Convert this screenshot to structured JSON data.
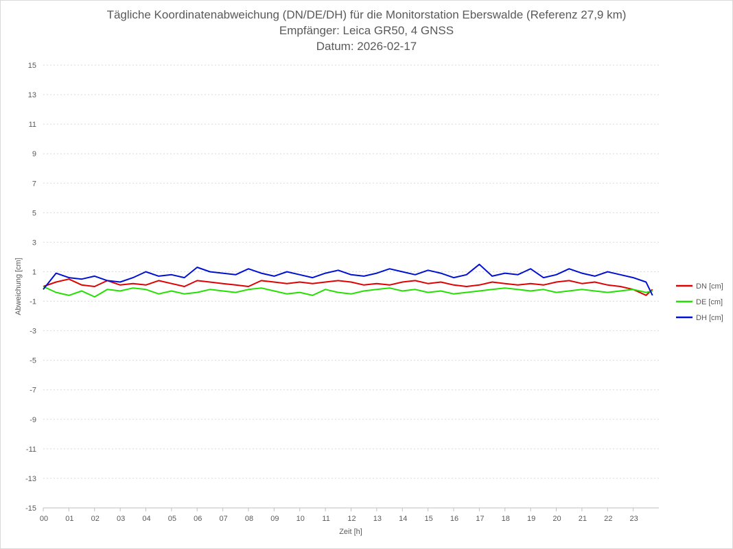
{
  "chart_data": {
    "type": "line",
    "title": "Tägliche Koordinatenabweichung (DN/DE/DH) für die Monitorstation Eberswalde (Referenz 27,9 km)",
    "subtitle": "Empfänger: Leica GR50, 4 GNSS",
    "date_line": "Datum: 2026-02-17",
    "xlabel": "Zeit [h]",
    "ylabel": "Abweichung [cm]",
    "xlim": [
      0,
      24
    ],
    "ylim": [
      -15,
      15
    ],
    "x_ticks": [
      "00",
      "01",
      "02",
      "03",
      "04",
      "05",
      "06",
      "07",
      "08",
      "09",
      "10",
      "11",
      "12",
      "13",
      "14",
      "15",
      "16",
      "17",
      "18",
      "19",
      "20",
      "21",
      "22",
      "23"
    ],
    "y_ticks": [
      15,
      13,
      11,
      9,
      7,
      5,
      3,
      1,
      -1,
      -3,
      -5,
      -7,
      -9,
      -11,
      -13,
      -15
    ],
    "grid": true,
    "legend_position": "right",
    "x": [
      0,
      0.5,
      1,
      1.5,
      2,
      2.5,
      3,
      3.5,
      4,
      4.5,
      5,
      5.5,
      6,
      6.5,
      7,
      7.5,
      8,
      8.5,
      9,
      9.5,
      10,
      10.5,
      11,
      11.5,
      12,
      12.5,
      13,
      13.5,
      14,
      14.5,
      15,
      15.5,
      16,
      16.5,
      17,
      17.5,
      18,
      18.5,
      19,
      19.5,
      20,
      20.5,
      21,
      21.5,
      22,
      22.5,
      23,
      23.5,
      23.75
    ],
    "series": [
      {
        "name": "DN [cm]",
        "color": "#e00000",
        "values": [
          0.0,
          0.3,
          0.5,
          0.1,
          0.0,
          0.4,
          0.1,
          0.2,
          0.1,
          0.4,
          0.2,
          0.0,
          0.4,
          0.3,
          0.2,
          0.1,
          0.0,
          0.4,
          0.3,
          0.2,
          0.3,
          0.2,
          0.3,
          0.4,
          0.3,
          0.1,
          0.2,
          0.1,
          0.3,
          0.4,
          0.2,
          0.3,
          0.1,
          0.0,
          0.1,
          0.3,
          0.2,
          0.1,
          0.2,
          0.1,
          0.3,
          0.4,
          0.2,
          0.3,
          0.1,
          0.0,
          -0.2,
          -0.6,
          -0.2
        ]
      },
      {
        "name": "DE [cm]",
        "color": "#22e000",
        "values": [
          0.0,
          -0.4,
          -0.6,
          -0.3,
          -0.7,
          -0.2,
          -0.3,
          -0.1,
          -0.2,
          -0.5,
          -0.3,
          -0.5,
          -0.4,
          -0.2,
          -0.3,
          -0.4,
          -0.2,
          -0.1,
          -0.3,
          -0.5,
          -0.4,
          -0.6,
          -0.2,
          -0.4,
          -0.5,
          -0.3,
          -0.2,
          -0.1,
          -0.3,
          -0.2,
          -0.4,
          -0.3,
          -0.5,
          -0.4,
          -0.3,
          -0.2,
          -0.1,
          -0.2,
          -0.3,
          -0.2,
          -0.4,
          -0.3,
          -0.2,
          -0.3,
          -0.4,
          -0.3,
          -0.2,
          -0.4,
          -0.3
        ]
      },
      {
        "name": "DH [cm]",
        "color": "#0010d0",
        "values": [
          -0.2,
          0.9,
          0.6,
          0.5,
          0.7,
          0.4,
          0.3,
          0.6,
          1.0,
          0.7,
          0.8,
          0.6,
          1.3,
          1.0,
          0.9,
          0.8,
          1.2,
          0.9,
          0.7,
          1.0,
          0.8,
          0.6,
          0.9,
          1.1,
          0.8,
          0.7,
          0.9,
          1.2,
          1.0,
          0.8,
          1.1,
          0.9,
          0.6,
          0.8,
          1.5,
          0.7,
          0.9,
          0.8,
          1.2,
          0.6,
          0.8,
          1.2,
          0.9,
          0.7,
          1.0,
          0.8,
          0.6,
          0.3,
          -0.6
        ]
      }
    ]
  }
}
